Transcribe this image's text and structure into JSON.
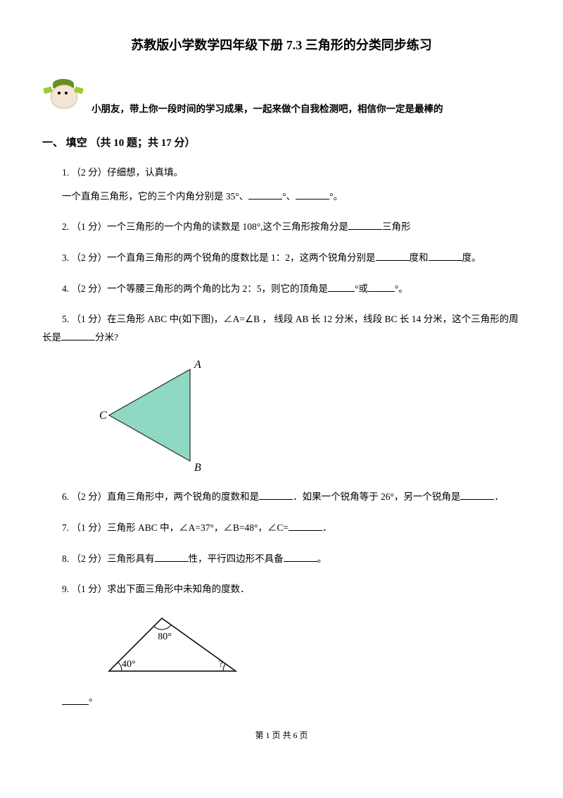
{
  "title": "苏教版小学数学四年级下册 7.3 三角形的分类同步练习",
  "intro": "小朋友，带上你一段时间的学习成果，一起来做个自我检测吧，相信你一定是最棒的",
  "section": {
    "number": "一、",
    "title": "填空",
    "meta": "（共 10 题；共 17 分）"
  },
  "q1": {
    "prefix": "1. （2 分）仔细想，认真填。",
    "body_a": "一个直角三角形，它的三个内角分别是 35°、",
    "body_b": "°、",
    "body_c": "°。"
  },
  "q2": {
    "a": "2. （1 分）一个三角形的一个内角的读数是 108°,这个三角形按角分是",
    "b": "三角形"
  },
  "q3": {
    "a": "3. （2 分）一个直角三角形的两个锐角的度数比是 1：2，这两个锐角分别是",
    "b": "度和",
    "c": "度。"
  },
  "q4": {
    "a": "4. （2 分）一个等腰三角形的两个角的比为 2：5，则它的顶角是",
    "b": "°或",
    "c": "°。"
  },
  "q5": {
    "a": "5. （1 分）在三角形 ABC 中(如下图)，∠A=∠B ， 线段 AB 长 12 分米，线段 BC 长 14 分米，这个三角形的周",
    "b": "长是",
    "c": "分米?"
  },
  "q6": {
    "a": "6. （2 分）直角三角形中，两个锐角的度数和是",
    "b": "．如果一个锐角等于 26°，另一个锐角是",
    "c": "．"
  },
  "q7": {
    "a": "7. （1 分）三角形 ABC 中，∠A=37°，∠B=48°，∠C=",
    "b": "．"
  },
  "q8": {
    "a": "8. （2 分）三角形具有",
    "b": "性，平行四边形不具备",
    "c": "。"
  },
  "q9": {
    "a": "9. （1 分）求出下面三角形中未知角的度数．"
  },
  "answer_suffix": "°",
  "triangle1": {
    "fill": "#8fd9c4",
    "stroke": "#2a2a2a",
    "label_color": "#000000",
    "labels": {
      "A": "A",
      "B": "B",
      "C": "C"
    },
    "points": {
      "A": [
        130,
        15
      ],
      "B": [
        130,
        145
      ],
      "C": [
        15,
        80
      ]
    }
  },
  "triangle2": {
    "stroke": "#000000",
    "angles": {
      "top": "80°",
      "left": "40°",
      "right": "?"
    },
    "points": {
      "top": [
        90,
        10
      ],
      "left": [
        15,
        85
      ],
      "right": [
        195,
        85
      ]
    }
  },
  "footer": "第 1 页 共 6 页"
}
